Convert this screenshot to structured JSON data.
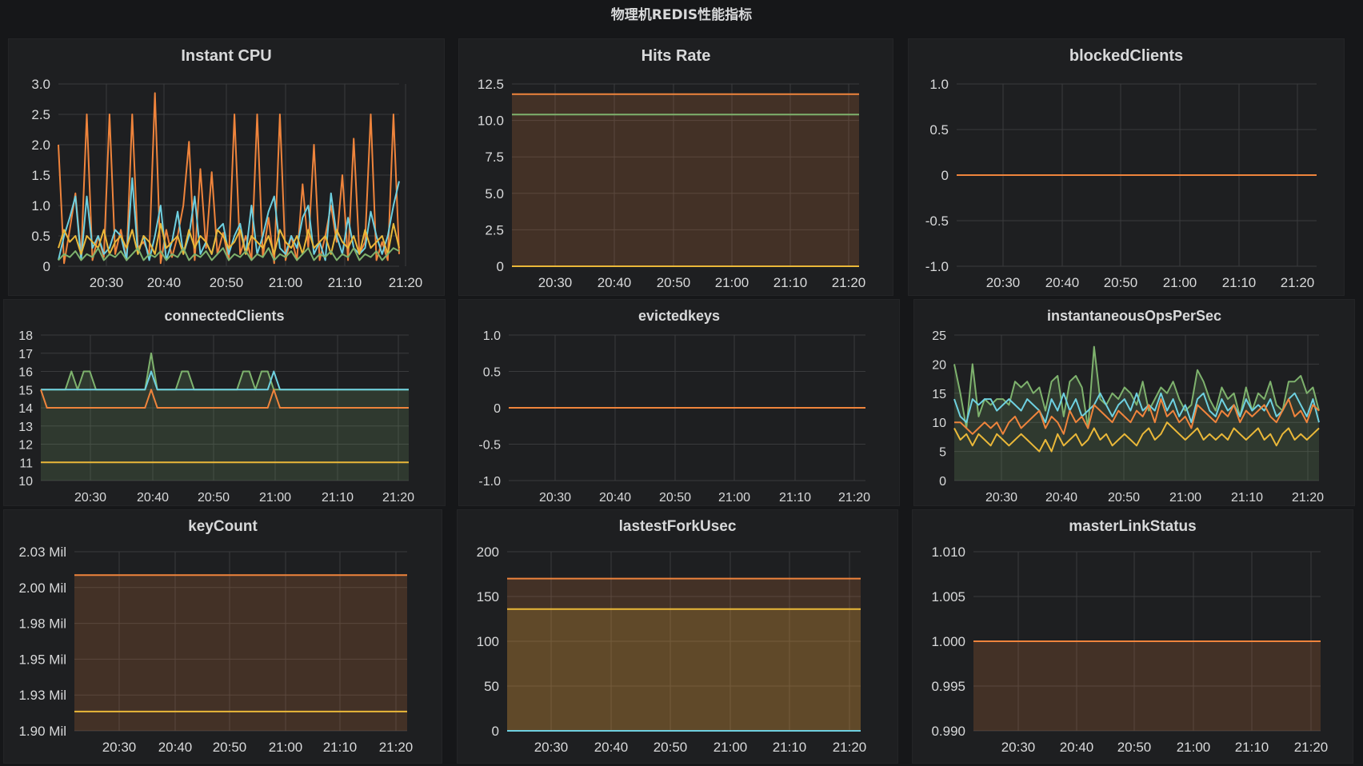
{
  "dashboard": {
    "title": "物理机REDIS性能指标"
  },
  "time_ticks": [
    "20:30",
    "20:40",
    "20:50",
    "21:00",
    "21:10",
    "21:20"
  ],
  "colors": {
    "green": "#7eb26d",
    "yellow": "#eab839",
    "cyan": "#6ed0e0",
    "orange": "#ef843c"
  },
  "chart_data": [
    {
      "title": "Instant CPU",
      "type": "line",
      "x": "20:22–21:22 (1 min samples)",
      "yticks": [
        "3.0",
        "2.5",
        "2.0",
        "1.5",
        "1.0",
        "0.5",
        "0"
      ],
      "ylim": [
        0,
        3
      ],
      "series": [
        {
          "color": "#ef843c",
          "values": [
            2.0,
            0.05,
            0.6,
            1.2,
            0.15,
            2.5,
            0.1,
            0.5,
            0.15,
            2.5,
            0.2,
            0.6,
            0.1,
            2.5,
            0.3,
            0.4,
            0.2,
            2.85,
            0.05,
            0.6,
            0.15,
            0.5,
            1.0,
            2.05,
            0.1,
            1.6,
            0.3,
            1.55,
            0.2,
            0.55,
            0.1,
            2.5,
            0.2,
            0.5,
            0.1,
            2.5,
            0.15,
            0.8,
            0.05,
            2.5,
            0.1,
            0.5,
            0.1,
            1.35,
            0.3,
            2.0,
            0.1,
            0.5,
            1.0,
            0.4,
            1.5,
            0.1,
            2.1,
            0.2,
            0.4,
            2.5,
            0.1,
            0.4,
            0.1,
            2.5,
            0.2
          ]
        },
        {
          "color": "#6ed0e0",
          "values": [
            0.1,
            0.5,
            0.8,
            1.15,
            0.1,
            1.15,
            0.3,
            0.5,
            0.2,
            0.3,
            0.6,
            0.5,
            0.1,
            1.45,
            0.2,
            0.5,
            0.1,
            0.5,
            1.0,
            0.1,
            0.4,
            0.9,
            0.2,
            0.5,
            1.15,
            0.2,
            0.4,
            0.2,
            0.6,
            0.7,
            0.2,
            0.5,
            0.7,
            0.2,
            1.0,
            0.2,
            0.5,
            0.9,
            1.15,
            0.3,
            0.2,
            0.5,
            0.3,
            0.8,
            1.0,
            0.2,
            0.4,
            0.1,
            1.2,
            0.5,
            0.2,
            0.8,
            0.3,
            0.2,
            0.3,
            0.9,
            0.5,
            0.2,
            0.5,
            1.0,
            1.4
          ]
        },
        {
          "color": "#eab839",
          "values": [
            0.3,
            0.6,
            0.4,
            0.5,
            0.2,
            0.5,
            0.4,
            0.3,
            0.6,
            0.2,
            0.4,
            0.5,
            0.3,
            0.6,
            0.2,
            0.5,
            0.4,
            0.2,
            0.7,
            0.3,
            0.4,
            0.5,
            0.2,
            0.6,
            0.3,
            0.5,
            0.4,
            0.2,
            0.6,
            0.5,
            0.3,
            0.4,
            0.6,
            0.2,
            0.5,
            0.4,
            0.3,
            0.5,
            0.2,
            0.6,
            0.4,
            0.3,
            0.5,
            0.2,
            0.6,
            0.3,
            0.4,
            0.5,
            0.2,
            0.6,
            0.4,
            0.3,
            0.5,
            0.2,
            0.6,
            0.3,
            0.4,
            0.5,
            0.2,
            0.7,
            0.3
          ]
        },
        {
          "color": "#7eb26d",
          "values": [
            0.1,
            0.2,
            0.15,
            0.25,
            0.1,
            0.2,
            0.15,
            0.3,
            0.1,
            0.2,
            0.15,
            0.25,
            0.1,
            0.2,
            0.3,
            0.1,
            0.2,
            0.15,
            0.25,
            0.1,
            0.2,
            0.15,
            0.3,
            0.1,
            0.2,
            0.15,
            0.25,
            0.1,
            0.2,
            0.3,
            0.1,
            0.2,
            0.15,
            0.25,
            0.1,
            0.2,
            0.15,
            0.3,
            0.1,
            0.2,
            0.15,
            0.25,
            0.1,
            0.2,
            0.3,
            0.1,
            0.2,
            0.15,
            0.25,
            0.1,
            0.2,
            0.15,
            0.3,
            0.1,
            0.2,
            0.15,
            0.25,
            0.1,
            0.2,
            0.3,
            0.25
          ]
        }
      ]
    },
    {
      "title": "Hits Rate",
      "type": "line",
      "yticks": [
        "12.5",
        "10.0",
        "7.5",
        "5.0",
        "2.5",
        "0"
      ],
      "ylim": [
        0,
        12.5
      ],
      "series": [
        {
          "color": "#ef843c",
          "values": [
            11.8,
            11.8
          ],
          "fill": true
        },
        {
          "color": "#7eb26d",
          "values": [
            10.4,
            10.4
          ]
        },
        {
          "color": "#eab839",
          "values": [
            0,
            0
          ]
        }
      ]
    },
    {
      "title": "blockedClients",
      "type": "line",
      "yticks": [
        "1.0",
        "0.5",
        "0",
        "-0.5",
        "-1.0"
      ],
      "ylim": [
        -1,
        1
      ],
      "series": [
        {
          "color": "#ef843c",
          "values": [
            0,
            0
          ]
        }
      ]
    },
    {
      "title": "connectedClients",
      "type": "line",
      "yticks": [
        "18",
        "17",
        "16",
        "15",
        "14",
        "13",
        "12",
        "11",
        "10"
      ],
      "ylim": [
        10,
        18
      ],
      "series": [
        {
          "color": "#7eb26d",
          "values": [
            15,
            15,
            15,
            15,
            15,
            16,
            15,
            16,
            16,
            15,
            15,
            15,
            15,
            15,
            15,
            15,
            15,
            15,
            17,
            15,
            15,
            15,
            15,
            16,
            16,
            15,
            15,
            15,
            15,
            15,
            15,
            15,
            15,
            16,
            16,
            15,
            16,
            16,
            15,
            15,
            15,
            15,
            15,
            15,
            15,
            15,
            15,
            15,
            15,
            15,
            15,
            15,
            15,
            15,
            15,
            15,
            15,
            15,
            15,
            15,
            15
          ],
          "fill": true
        },
        {
          "color": "#6ed0e0",
          "values": [
            15,
            15,
            15,
            15,
            15,
            15,
            15,
            15,
            15,
            15,
            15,
            15,
            15,
            15,
            15,
            15,
            15,
            15,
            16,
            15,
            15,
            15,
            15,
            15,
            15,
            15,
            15,
            15,
            15,
            15,
            15,
            15,
            15,
            15,
            15,
            15,
            15,
            15,
            16,
            15,
            15,
            15,
            15,
            15,
            15,
            15,
            15,
            15,
            15,
            15,
            15,
            15,
            15,
            15,
            15,
            15,
            15,
            15,
            15,
            15,
            15
          ]
        },
        {
          "color": "#ef843c",
          "values": [
            15,
            14,
            14,
            14,
            14,
            14,
            14,
            14,
            14,
            14,
            14,
            14,
            14,
            14,
            14,
            14,
            14,
            14,
            15,
            14,
            14,
            14,
            14,
            14,
            14,
            14,
            14,
            14,
            14,
            14,
            14,
            14,
            14,
            14,
            14,
            14,
            14,
            14,
            15,
            14,
            14,
            14,
            14,
            14,
            14,
            14,
            14,
            14,
            14,
            14,
            14,
            14,
            14,
            14,
            14,
            14,
            14,
            14,
            14,
            14,
            14
          ]
        },
        {
          "color": "#eab839",
          "values": [
            11,
            11
          ]
        }
      ]
    },
    {
      "title": "evictedkeys",
      "type": "line",
      "yticks": [
        "1.0",
        "0.5",
        "0",
        "-0.5",
        "-1.0"
      ],
      "ylim": [
        -1,
        1
      ],
      "series": [
        {
          "color": "#ef843c",
          "values": [
            0,
            0
          ]
        }
      ]
    },
    {
      "title": "instantaneousOpsPerSec",
      "type": "line",
      "yticks": [
        "25",
        "20",
        "15",
        "10",
        "5",
        "0"
      ],
      "ylim": [
        0,
        25
      ],
      "series": [
        {
          "color": "#7eb26d",
          "values": [
            20,
            15,
            9,
            20,
            11,
            14,
            13,
            14,
            14,
            13,
            17,
            16,
            17,
            15,
            16,
            12,
            17,
            18,
            11,
            17,
            18,
            16,
            9,
            23,
            14,
            13,
            15,
            14,
            16,
            15,
            13,
            17,
            12,
            14,
            16,
            15,
            17,
            14,
            12,
            13,
            19,
            17,
            14,
            12,
            16,
            14,
            15,
            11,
            16,
            12,
            15,
            14,
            17,
            13,
            12,
            17,
            17,
            18,
            15,
            16,
            12
          ],
          "fill": true
        },
        {
          "color": "#6ed0e0",
          "values": [
            14,
            11,
            10,
            14,
            13,
            14,
            14,
            12,
            13,
            14,
            13,
            12,
            14,
            13,
            12,
            10,
            14,
            12,
            15,
            12,
            14,
            11,
            12,
            13,
            15,
            13,
            11,
            13,
            14,
            12,
            15,
            12,
            13,
            12,
            15,
            12,
            14,
            11,
            13,
            10,
            14,
            15,
            12,
            11,
            14,
            12,
            13,
            11,
            14,
            12,
            13,
            12,
            14,
            11,
            12,
            14,
            15,
            13,
            11,
            14,
            10
          ]
        },
        {
          "color": "#ef843c",
          "values": [
            10,
            10,
            9,
            8,
            9,
            10,
            9,
            10,
            8,
            10,
            11,
            9,
            10,
            11,
            12,
            9,
            11,
            10,
            8,
            12,
            10,
            11,
            9,
            13,
            12,
            11,
            10,
            12,
            11,
            10,
            12,
            11,
            13,
            10,
            14,
            11,
            12,
            10,
            11,
            9,
            13,
            12,
            11,
            10,
            12,
            11,
            13,
            10,
            12,
            11,
            12,
            13,
            11,
            10,
            12,
            14,
            11,
            12,
            10,
            13,
            12
          ]
        },
        {
          "color": "#eab839",
          "values": [
            9,
            7,
            8,
            6,
            8,
            7,
            6,
            8,
            7,
            6,
            7,
            8,
            7,
            6,
            5,
            7,
            5,
            8,
            6,
            7,
            8,
            6,
            7,
            9,
            7,
            8,
            6,
            7,
            8,
            7,
            6,
            8,
            9,
            7,
            8,
            10,
            9,
            8,
            7,
            8,
            9,
            7,
            8,
            7,
            8,
            7,
            9,
            8,
            7,
            8,
            9,
            7,
            8,
            6,
            8,
            9,
            7,
            8,
            7,
            8,
            9
          ]
        }
      ]
    },
    {
      "title": "keyCount",
      "type": "line",
      "yticks": [
        "2.03 Mil",
        "2.00 Mil",
        "1.98 Mil",
        "1.95 Mil",
        "1.93 Mil",
        "1.90 Mil"
      ],
      "ylim": [
        1.9,
        2.03
      ],
      "series": [
        {
          "color": "#ef843c",
          "values": [
            2.013,
            2.013
          ],
          "fill": true
        },
        {
          "color": "#eab839",
          "values": [
            1.914,
            1.914
          ]
        }
      ]
    },
    {
      "title": "lastestForkUsec",
      "type": "line",
      "yticks": [
        "200",
        "150",
        "100",
        "50",
        "0"
      ],
      "ylim": [
        0,
        200
      ],
      "series": [
        {
          "color": "#ef843c",
          "values": [
            170,
            170
          ],
          "fill": true
        },
        {
          "color": "#eab839",
          "values": [
            136,
            136
          ],
          "fill": true
        },
        {
          "color": "#6ed0e0",
          "values": [
            0,
            0
          ]
        }
      ]
    },
    {
      "title": "masterLinkStatus",
      "type": "line",
      "yticks": [
        "1.010",
        "1.005",
        "1.000",
        "0.995",
        "0.990"
      ],
      "ylim": [
        0.99,
        1.01
      ],
      "series": [
        {
          "color": "#ef843c",
          "values": [
            1.0,
            1.0
          ],
          "fill": true
        }
      ]
    }
  ]
}
